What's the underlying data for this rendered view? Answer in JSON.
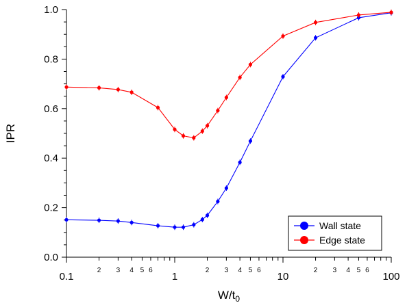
{
  "chart_data": {
    "type": "line",
    "xlabel": "W/t",
    "xlabel_sub": "0",
    "ylabel": "IPR",
    "xscale": "log",
    "xlim": [
      0.1,
      100
    ],
    "ylim": [
      0.0,
      1.0
    ],
    "y_ticks": [
      0.0,
      0.2,
      0.4,
      0.6,
      0.8,
      1.0
    ],
    "y_tick_labels": [
      "0.0",
      "0.2",
      "0.4",
      "0.6",
      "0.8",
      "1.0"
    ],
    "x_major_ticks": [
      0.1,
      1,
      10,
      100
    ],
    "x_major_labels": [
      "0.1",
      "1",
      "10",
      "100"
    ],
    "x_minor_labels": [
      {
        "x": 0.2,
        "label": "2"
      },
      {
        "x": 0.3,
        "label": "3"
      },
      {
        "x": 0.4,
        "label": "4"
      },
      {
        "x": 0.5,
        "label": "5"
      },
      {
        "x": 0.6,
        "label": "6"
      },
      {
        "x": 2,
        "label": "2"
      },
      {
        "x": 3,
        "label": "3"
      },
      {
        "x": 4,
        "label": "4"
      },
      {
        "x": 5,
        "label": "5"
      },
      {
        "x": 6,
        "label": "6"
      },
      {
        "x": 20,
        "label": "2"
      },
      {
        "x": 30,
        "label": "3"
      },
      {
        "x": 40,
        "label": "4"
      },
      {
        "x": 50,
        "label": "5"
      },
      {
        "x": 60,
        "label": "6"
      }
    ],
    "legend_position": "bottom-right",
    "series": [
      {
        "name": "Wall state",
        "color": "#0000ff",
        "x": [
          0.1,
          0.2,
          0.3,
          0.4,
          0.7,
          1.0,
          1.2,
          1.5,
          1.8,
          2.0,
          2.5,
          3.0,
          4.0,
          5.0,
          10,
          20,
          50,
          100
        ],
        "y": [
          0.151,
          0.149,
          0.146,
          0.14,
          0.127,
          0.121,
          0.121,
          0.131,
          0.152,
          0.169,
          0.225,
          0.279,
          0.383,
          0.469,
          0.729,
          0.886,
          0.967,
          0.987
        ]
      },
      {
        "name": "Edge state",
        "color": "#ff0000",
        "x": [
          0.1,
          0.2,
          0.3,
          0.4,
          0.7,
          1.0,
          1.2,
          1.5,
          1.8,
          2.0,
          2.5,
          3.0,
          4.0,
          5.0,
          10,
          20,
          50,
          100
        ],
        "y": [
          0.687,
          0.684,
          0.677,
          0.666,
          0.604,
          0.516,
          0.49,
          0.482,
          0.509,
          0.531,
          0.592,
          0.645,
          0.726,
          0.778,
          0.893,
          0.948,
          0.978,
          0.989
        ]
      }
    ]
  }
}
